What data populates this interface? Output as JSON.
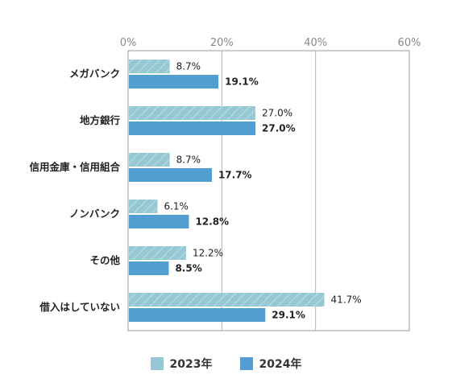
{
  "chart_data": {
    "type": "bar",
    "orientation": "horizontal",
    "categories": [
      "メガバンク",
      "地方銀行",
      "信用金庫・信用組合",
      "ノンバンク",
      "その他",
      "借入はしていない"
    ],
    "series": [
      {
        "name": "2023年",
        "values": [
          8.7,
          27.0,
          8.7,
          6.1,
          12.2,
          41.7
        ],
        "labels": [
          "8.7%",
          "27.0%",
          "8.7%",
          "6.1%",
          "12.2%",
          "41.7%"
        ],
        "color": "#96c8d4",
        "pattern": "diagonal-stripes"
      },
      {
        "name": "2024年",
        "values": [
          19.1,
          27.0,
          17.7,
          12.8,
          8.5,
          29.1
        ],
        "labels": [
          "19.1%",
          "27.0%",
          "17.7%",
          "12.8%",
          "8.5%",
          "29.1%"
        ],
        "color": "#539ed0"
      }
    ],
    "x_ticks": [
      "0%",
      "20%",
      "40%",
      "60%"
    ],
    "xlim": [
      0,
      60
    ],
    "grid": true,
    "legend_position": "bottom-center"
  }
}
